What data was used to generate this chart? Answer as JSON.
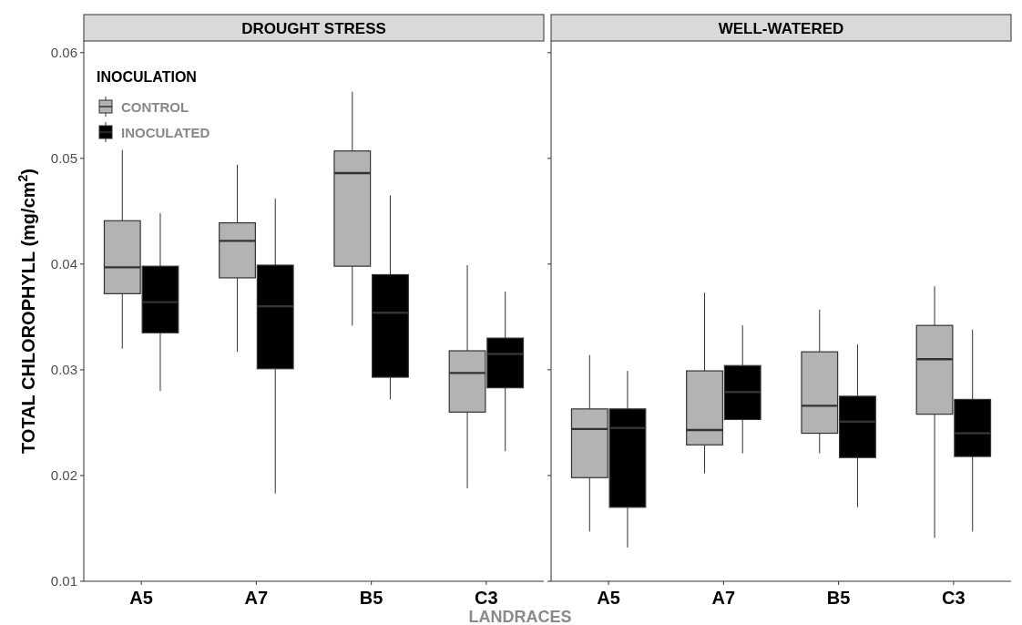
{
  "chart_data": [
    {
      "type": "box",
      "title": "DROUGHT STRESS",
      "ylabel": "TOTAL CHLOROPHYLL (mg/cm$^{2}$)",
      "xlabel": "LANDRACES",
      "legend_title": "INOCULATION",
      "legend": "top left",
      "categories": [
        "A5",
        "A7",
        "B5",
        "C3"
      ],
      "ylim": [
        0.01,
        0.0611
      ],
      "yticks": [
        0.01,
        0.02,
        0.03,
        0.04,
        0.05,
        0.06
      ],
      "series": [
        {
          "name": "CONTROL",
          "color": "#b3b3b3",
          "boxes": [
            {
              "low": 0.032,
              "q1": 0.0372,
              "median": 0.0397,
              "q3": 0.0441,
              "high": 0.0508
            },
            {
              "low": 0.0317,
              "q1": 0.0387,
              "median": 0.0422,
              "q3": 0.0439,
              "high": 0.0494
            },
            {
              "low": 0.0342,
              "q1": 0.0398,
              "median": 0.0486,
              "q3": 0.0507,
              "high": 0.0563
            },
            {
              "low": 0.0188,
              "q1": 0.026,
              "median": 0.0297,
              "q3": 0.0318,
              "high": 0.0399
            }
          ]
        },
        {
          "name": "INOCULATED",
          "color": "#000000",
          "boxes": [
            {
              "low": 0.028,
              "q1": 0.0335,
              "median": 0.0364,
              "q3": 0.0398,
              "high": 0.0448
            },
            {
              "low": 0.0183,
              "q1": 0.0301,
              "median": 0.036,
              "q3": 0.0399,
              "high": 0.0462
            },
            {
              "low": 0.0272,
              "q1": 0.0293,
              "median": 0.0354,
              "q3": 0.039,
              "high": 0.0465
            },
            {
              "low": 0.0223,
              "q1": 0.0283,
              "median": 0.0315,
              "q3": 0.033,
              "high": 0.0374
            }
          ]
        }
      ]
    },
    {
      "type": "box",
      "title": "WELL-WATERED",
      "tick_labels": "x",
      "categories": [
        "A5",
        "A7",
        "B5",
        "C3"
      ],
      "ylim": [
        0.01,
        0.0611
      ],
      "yticks": [
        0.01,
        0.02,
        0.03,
        0.04,
        0.05,
        0.06
      ],
      "series": [
        {
          "color": "#b3b3b3",
          "boxes": [
            {
              "low": 0.0147,
              "q1": 0.0198,
              "median": 0.0244,
              "q3": 0.0263,
              "high": 0.0314
            },
            {
              "low": 0.0202,
              "q1": 0.0229,
              "median": 0.0243,
              "q3": 0.0299,
              "high": 0.0373
            },
            {
              "low": 0.0221,
              "q1": 0.024,
              "median": 0.0266,
              "q3": 0.0317,
              "high": 0.0357
            },
            {
              "low": 0.0141,
              "q1": 0.0258,
              "median": 0.031,
              "q3": 0.0342,
              "high": 0.0379
            }
          ]
        },
        {
          "color": "#000000",
          "boxes": [
            {
              "low": 0.0132,
              "q1": 0.017,
              "median": 0.0245,
              "q3": 0.0263,
              "high": 0.0299
            },
            {
              "low": 0.0221,
              "q1": 0.0253,
              "median": 0.0279,
              "q3": 0.0304,
              "high": 0.0342
            },
            {
              "low": 0.017,
              "q1": 0.0217,
              "median": 0.0251,
              "q3": 0.0275,
              "high": 0.0324
            },
            {
              "low": 0.0147,
              "q1": 0.0218,
              "median": 0.024,
              "q3": 0.0272,
              "high": 0.0338
            }
          ]
        }
      ]
    }
  ]
}
